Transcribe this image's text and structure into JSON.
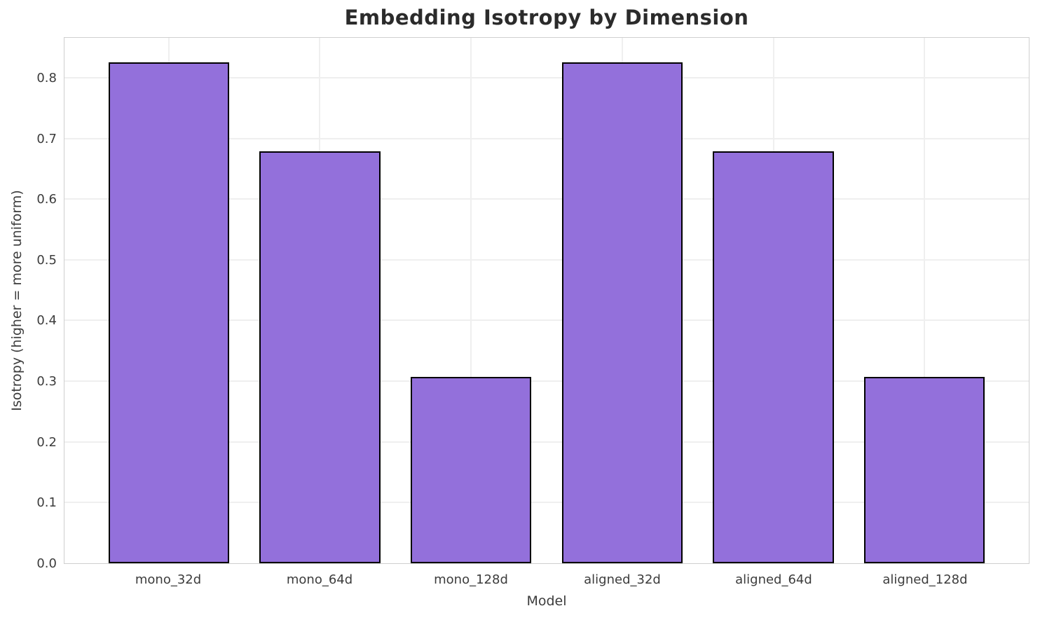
{
  "chart_data": {
    "type": "bar",
    "title": "Embedding Isotropy by Dimension",
    "xlabel": "Model",
    "ylabel": "Isotropy (higher = more uniform)",
    "categories": [
      "mono_32d",
      "mono_64d",
      "mono_128d",
      "aligned_32d",
      "aligned_64d",
      "aligned_128d"
    ],
    "values": [
      0.827,
      0.68,
      0.308,
      0.827,
      0.68,
      0.308
    ],
    "ytick_labels": [
      "0.0",
      "0.1",
      "0.2",
      "0.3",
      "0.4",
      "0.5",
      "0.6",
      "0.7",
      "0.8"
    ],
    "ylim": [
      0,
      0.868
    ],
    "xlim": [
      -0.69,
      5.69
    ],
    "bar_width": 0.8,
    "grid": true,
    "legend_position": "none",
    "colors": {
      "bar_fill": "#9370DB",
      "bar_edge": "#000000",
      "grid": "#efefef",
      "spine": "#cfcfcf",
      "title_text": "#2b2b2b",
      "tick_text": "#3c3c3c",
      "background": "#ffffff"
    }
  }
}
